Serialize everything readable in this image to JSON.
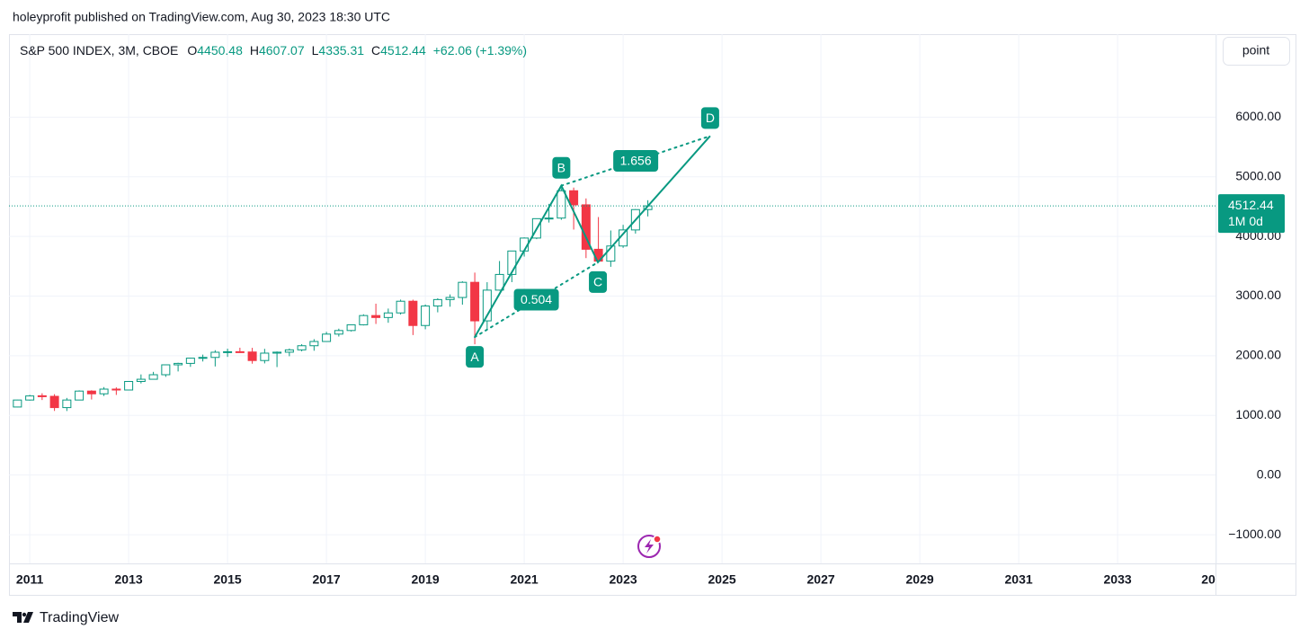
{
  "header": "holeyprofit published on TradingView.com, Aug 30, 2023 18:30 UTC",
  "footer": "TradingView",
  "button": "point",
  "chart_data": {
    "type": "candlestick",
    "legend": {
      "symbol": "S&P 500 INDEX, 3M, CBOE",
      "prefixes": [
        "O",
        "H",
        "L",
        "C"
      ],
      "change_label": "+62.06 (+1.39%)"
    },
    "price_tag_extra": "1M 0d",
    "up_color": "#089981",
    "down_color": "#f23645",
    "x": [
      2010.75,
      2011,
      2011.25,
      2011.5,
      2011.75,
      2012,
      2012.25,
      2012.5,
      2012.75,
      2013,
      2013.25,
      2013.5,
      2013.75,
      2014,
      2014.25,
      2014.5,
      2014.75,
      2015,
      2015.25,
      2015.5,
      2015.75,
      2016,
      2016.25,
      2016.5,
      2016.75,
      2017,
      2017.25,
      2017.5,
      2017.75,
      2018,
      2018.25,
      2018.5,
      2018.75,
      2019,
      2019.25,
      2019.5,
      2019.75,
      2020,
      2020.25,
      2020.5,
      2020.75,
      2021,
      2021.25,
      2021.5,
      2021.75,
      2022,
      2022.25,
      2022.5,
      2022.75,
      2023,
      2023.25,
      2023.5
    ],
    "open": [
      1141,
      1258,
      1329,
      1320,
      1131,
      1258,
      1408,
      1362,
      1441,
      1426,
      1569,
      1606,
      1682,
      1848,
      1872,
      1960,
      1972,
      2059,
      2068,
      2063,
      1920,
      2044,
      2060,
      2099,
      2168,
      2239,
      2363,
      2423,
      2519,
      2674,
      2641,
      2718,
      2914,
      2507,
      2834,
      2942,
      2977,
      3231,
      2585,
      3100,
      3363,
      3756,
      3973,
      4298,
      4308,
      4766,
      4530,
      3785,
      3586,
      3840,
      4109,
      4450.48
    ],
    "high": [
      1262,
      1344,
      1371,
      1356,
      1293,
      1420,
      1422,
      1475,
      1470,
      1574,
      1687,
      1730,
      1849,
      1883,
      1968,
      2019,
      2093,
      2119,
      2135,
      2133,
      2116,
      2072,
      2121,
      2194,
      2278,
      2401,
      2454,
      2520,
      2695,
      2873,
      2791,
      2941,
      2940,
      2860,
      2964,
      3028,
      3248,
      3394,
      3233,
      3588,
      3760,
      3984,
      4298,
      4546,
      4808,
      4819,
      4637,
      4325,
      4100,
      4195,
      4458,
      4607.07
    ],
    "low": [
      1137,
      1249,
      1258,
      1075,
      1074,
      1258,
      1267,
      1325,
      1343,
      1426,
      1536,
      1604,
      1646,
      1737,
      1814,
      1904,
      1821,
      1981,
      2048,
      1867,
      1872,
      1810,
      1992,
      2074,
      2084,
      2245,
      2322,
      2406,
      2508,
      2533,
      2553,
      2691,
      2347,
      2444,
      2728,
      2822,
      2856,
      2192,
      2448,
      3090,
      3234,
      3662,
      3955,
      4233,
      4279,
      4115,
      3637,
      3584,
      3491,
      3809,
      4048,
      4335.31
    ],
    "close": [
      1258,
      1326,
      1321,
      1131,
      1258,
      1408,
      1362,
      1441,
      1426,
      1569,
      1606,
      1682,
      1848,
      1872,
      1960,
      1972,
      2059,
      2068,
      2063,
      1920,
      2044,
      2060,
      2099,
      2168,
      2239,
      2363,
      2423,
      2519,
      2674,
      2641,
      2718,
      2914,
      2507,
      2834,
      2942,
      2977,
      3231,
      2585,
      3100,
      3363,
      3756,
      3973,
      4298,
      4308,
      4766,
      4530,
      3785,
      3586,
      3840,
      4109,
      4450,
      4512.44
    ],
    "xlim": [
      2010.58,
      2034.98
    ],
    "xticks": [
      2011,
      2013,
      2015,
      2017,
      2019,
      2021,
      2023,
      2025,
      2027,
      2029,
      2031,
      2033,
      {
        "value": 2035,
        "label": "20"
      }
    ],
    "ylim": [
      -1481,
      7391
    ],
    "yticks": [
      {
        "value": 6000,
        "label": "6000.00"
      },
      {
        "value": 5000,
        "label": "5000.00"
      },
      {
        "value": 4000,
        "label": "4000.00"
      },
      {
        "value": 3000,
        "label": "3000.00"
      },
      {
        "value": 2000,
        "label": "2000.00"
      },
      {
        "value": 1000,
        "label": "1000.00"
      },
      {
        "value": 0,
        "label": "0.00"
      },
      {
        "value": -1000,
        "label": "−1000.00"
      }
    ],
    "grid": true,
    "pattern": {
      "color": "#089981",
      "points": [
        {
          "label": "A",
          "x": 2020.0,
          "y": 2313
        },
        {
          "label": "B",
          "x": 2021.75,
          "y": 4850
        },
        {
          "label": "C",
          "x": 2022.49,
          "y": 3567
        },
        {
          "label": "D",
          "x": 2024.76,
          "y": 5684
        }
      ],
      "ratios": [
        0.504,
        1.656
      ]
    }
  }
}
